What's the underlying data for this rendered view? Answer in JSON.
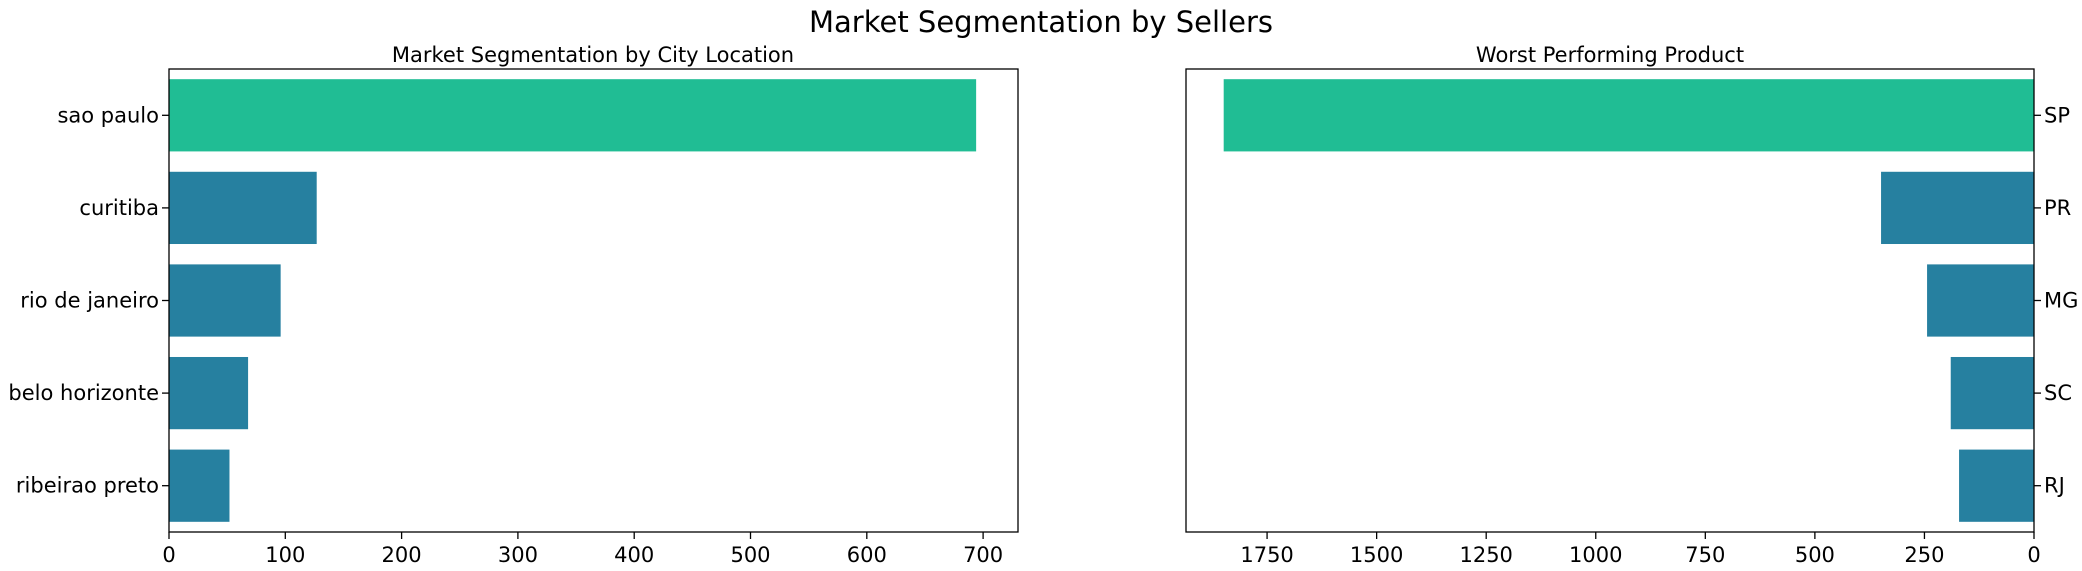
{
  "figure": {
    "title": "Market Segmentation by Sellers"
  },
  "chart_data": [
    {
      "type": "bar",
      "orientation": "horizontal",
      "title": "Market Segmentation by City Location",
      "categories": [
        "sao paulo",
        "curitiba",
        "rio de janeiro",
        "belo horizonte",
        "ribeirao preto"
      ],
      "values": [
        694,
        127,
        96,
        68,
        52
      ],
      "xlim": [
        0,
        730
      ],
      "xticks": [
        0,
        100,
        200,
        300,
        400,
        500,
        600,
        700
      ],
      "xlabel": "",
      "ylabel": "",
      "category_axis": "left",
      "colors": [
        "#20bd94",
        "#2680a0",
        "#2680a0",
        "#2680a0",
        "#2680a0"
      ]
    },
    {
      "type": "bar",
      "orientation": "horizontal",
      "title": "Worst Performing Product",
      "categories": [
        "SP",
        "PR",
        "MG",
        "SC",
        "RJ"
      ],
      "values": [
        1849,
        349,
        244,
        190,
        171
      ],
      "xlim": [
        1935,
        0
      ],
      "xaxis_inverted": true,
      "xticks": [
        1750,
        1500,
        1250,
        1000,
        750,
        500,
        250,
        0
      ],
      "xlabel": "",
      "ylabel": "",
      "category_axis": "right",
      "colors": [
        "#20bd94",
        "#2680a0",
        "#2680a0",
        "#2680a0",
        "#2680a0"
      ]
    }
  ]
}
